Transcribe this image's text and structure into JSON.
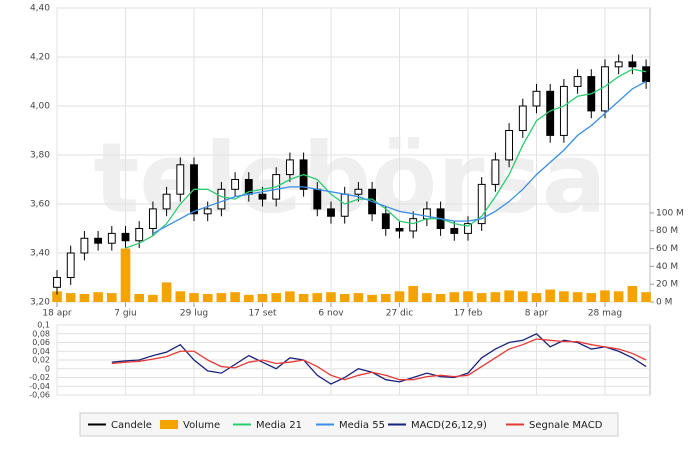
{
  "chart_data": [
    {
      "type": "candlestick",
      "watermark": "telebörsa",
      "x": [
        0,
        7,
        14,
        21,
        28,
        35,
        42,
        49,
        56,
        63,
        70,
        77,
        84,
        91,
        98,
        105,
        112,
        119,
        126,
        133,
        140,
        147,
        154,
        161,
        168,
        175,
        182,
        189,
        196,
        203,
        210,
        217,
        224,
        231,
        238,
        245,
        252,
        259,
        266,
        273,
        280,
        287,
        294,
        301
      ],
      "xlim": [
        0,
        303
      ],
      "xticks": [
        {
          "value": 0,
          "label": "18 apr"
        },
        {
          "value": 35,
          "label": "7 giu"
        },
        {
          "value": 70,
          "label": "29 lug"
        },
        {
          "value": 105,
          "label": "17 set"
        },
        {
          "value": 140,
          "label": "6 nov"
        },
        {
          "value": 175,
          "label": "27 dic"
        },
        {
          "value": 210,
          "label": "17 feb"
        },
        {
          "value": 245,
          "label": "8 apr"
        },
        {
          "value": 280,
          "label": "28 mag"
        }
      ],
      "ylim": [
        3.2,
        4.4
      ],
      "yticks": [
        {
          "value": 3.2,
          "label": "3,20"
        },
        {
          "value": 3.4,
          "label": "3,40"
        },
        {
          "value": 3.6,
          "label": "3,60"
        },
        {
          "value": 3.8,
          "label": "3,80"
        },
        {
          "value": 4.0,
          "label": "4,00"
        },
        {
          "value": 4.2,
          "label": "4,20"
        },
        {
          "value": 4.4,
          "label": "4,40"
        }
      ],
      "y2lim": [
        0,
        330
      ],
      "y2ticks": [
        {
          "value": 0,
          "label": "0 M"
        },
        {
          "value": 20,
          "label": "20 M"
        },
        {
          "value": 40,
          "label": "40 M"
        },
        {
          "value": 60,
          "label": "60 M"
        },
        {
          "value": 80,
          "label": "80 M"
        },
        {
          "value": 100,
          "label": "100 M"
        }
      ],
      "grid": true,
      "series": [
        {
          "name": "Candele",
          "type": "candlestick",
          "color": "#000000",
          "open": [
            3.26,
            3.3,
            3.4,
            3.46,
            3.44,
            3.48,
            3.45,
            3.5,
            3.58,
            3.64,
            3.76,
            3.56,
            3.58,
            3.66,
            3.7,
            3.64,
            3.62,
            3.72,
            3.78,
            3.66,
            3.58,
            3.55,
            3.64,
            3.66,
            3.56,
            3.5,
            3.49,
            3.54,
            3.58,
            3.5,
            3.48,
            3.52,
            3.68,
            3.78,
            3.9,
            4.0,
            4.06,
            3.88,
            4.08,
            4.12,
            3.98,
            4.16,
            4.18,
            4.16
          ],
          "high": [
            3.33,
            3.43,
            3.49,
            3.49,
            3.51,
            3.51,
            3.53,
            3.61,
            3.67,
            3.79,
            3.79,
            3.61,
            3.69,
            3.73,
            3.73,
            3.67,
            3.75,
            3.81,
            3.81,
            3.69,
            3.61,
            3.67,
            3.69,
            3.69,
            3.59,
            3.53,
            3.57,
            3.61,
            3.61,
            3.53,
            3.55,
            3.71,
            3.81,
            3.93,
            4.03,
            4.09,
            4.09,
            4.11,
            4.15,
            4.15,
            4.19,
            4.21,
            4.21,
            4.19
          ],
          "low": [
            3.23,
            3.27,
            3.37,
            3.41,
            3.41,
            3.42,
            3.42,
            3.47,
            3.55,
            3.61,
            3.53,
            3.53,
            3.55,
            3.63,
            3.61,
            3.59,
            3.59,
            3.69,
            3.63,
            3.55,
            3.52,
            3.52,
            3.61,
            3.53,
            3.47,
            3.46,
            3.46,
            3.51,
            3.47,
            3.45,
            3.45,
            3.49,
            3.65,
            3.75,
            3.87,
            3.97,
            3.85,
            3.85,
            4.05,
            3.95,
            3.95,
            4.13,
            4.13,
            4.07
          ],
          "close": [
            3.3,
            3.4,
            3.46,
            3.44,
            3.48,
            3.45,
            3.5,
            3.58,
            3.64,
            3.76,
            3.56,
            3.58,
            3.66,
            3.7,
            3.64,
            3.62,
            3.72,
            3.78,
            3.66,
            3.58,
            3.55,
            3.64,
            3.66,
            3.56,
            3.5,
            3.49,
            3.54,
            3.58,
            3.5,
            3.48,
            3.52,
            3.68,
            3.78,
            3.9,
            4.0,
            4.06,
            3.88,
            4.08,
            4.12,
            3.98,
            4.16,
            4.18,
            4.16,
            4.1
          ]
        },
        {
          "name": "Volume",
          "type": "bar",
          "axis": "y2",
          "color": "#f5a300",
          "values": [
            12,
            10,
            9,
            11,
            10,
            60,
            9,
            8,
            22,
            12,
            10,
            9,
            10,
            11,
            8,
            9,
            10,
            12,
            9,
            10,
            11,
            9,
            10,
            8,
            9,
            12,
            18,
            10,
            9,
            11,
            12,
            10,
            11,
            13,
            12,
            10,
            14,
            12,
            11,
            10,
            13,
            12,
            18,
            11
          ]
        },
        {
          "name": "Media 21",
          "type": "line",
          "color": "#2ecc71",
          "values": [
            null,
            null,
            null,
            null,
            null,
            3.42,
            3.44,
            3.47,
            3.52,
            3.6,
            3.66,
            3.66,
            3.63,
            3.62,
            3.65,
            3.66,
            3.67,
            3.7,
            3.72,
            3.7,
            3.64,
            3.6,
            3.62,
            3.62,
            3.58,
            3.53,
            3.52,
            3.54,
            3.54,
            3.52,
            3.51,
            3.55,
            3.63,
            3.72,
            3.84,
            3.94,
            3.98,
            4.0,
            4.04,
            4.05,
            4.08,
            4.12,
            4.15,
            4.14
          ]
        },
        {
          "name": "Media 55",
          "type": "line",
          "color": "#3a8ee6",
          "values": [
            null,
            null,
            null,
            null,
            null,
            null,
            null,
            3.48,
            3.51,
            3.54,
            3.57,
            3.59,
            3.61,
            3.63,
            3.64,
            3.65,
            3.66,
            3.67,
            3.67,
            3.66,
            3.65,
            3.64,
            3.63,
            3.61,
            3.59,
            3.57,
            3.56,
            3.55,
            3.54,
            3.53,
            3.53,
            3.54,
            3.57,
            3.61,
            3.66,
            3.72,
            3.77,
            3.82,
            3.88,
            3.92,
            3.97,
            4.02,
            4.07,
            4.1
          ]
        }
      ]
    },
    {
      "type": "line",
      "ylim": [
        -0.06,
        0.1
      ],
      "yticks": [
        {
          "value": 0.1,
          "label": "0,1"
        },
        {
          "value": 0.08,
          "label": "0,08"
        },
        {
          "value": 0.06,
          "label": "0,06"
        },
        {
          "value": 0.04,
          "label": "0,04"
        },
        {
          "value": 0.02,
          "label": "0,02"
        },
        0,
        {
          "value": -0.02,
          "label": "-0,02"
        },
        {
          "value": -0.04,
          "label": "-0,04"
        },
        {
          "value": -0.06,
          "label": "-0,06"
        }
      ],
      "series": [
        {
          "name": "MACD(26,12,9)",
          "type": "line",
          "color": "#1a237e",
          "values": [
            null,
            null,
            null,
            null,
            0.015,
            0.018,
            0.02,
            0.03,
            0.038,
            0.055,
            0.02,
            -0.005,
            -0.01,
            0.01,
            0.03,
            0.015,
            0.0,
            0.025,
            0.02,
            -0.015,
            -0.035,
            -0.02,
            0.0,
            -0.008,
            -0.025,
            -0.03,
            -0.02,
            -0.01,
            -0.018,
            -0.02,
            -0.01,
            0.025,
            0.045,
            0.06,
            0.065,
            0.08,
            0.05,
            0.065,
            0.06,
            0.045,
            0.05,
            0.04,
            0.025,
            0.005
          ]
        },
        {
          "name": "Segnale MACD",
          "type": "line",
          "color": "#e53935",
          "values": [
            null,
            null,
            null,
            null,
            0.012,
            0.015,
            0.017,
            0.022,
            0.028,
            0.04,
            0.04,
            0.02,
            0.005,
            0.002,
            0.015,
            0.02,
            0.012,
            0.015,
            0.02,
            0.005,
            -0.015,
            -0.025,
            -0.015,
            -0.008,
            -0.015,
            -0.025,
            -0.025,
            -0.018,
            -0.015,
            -0.018,
            -0.015,
            0.005,
            0.025,
            0.045,
            0.055,
            0.068,
            0.065,
            0.062,
            0.062,
            0.055,
            0.05,
            0.045,
            0.035,
            0.02
          ]
        }
      ]
    }
  ]
}
